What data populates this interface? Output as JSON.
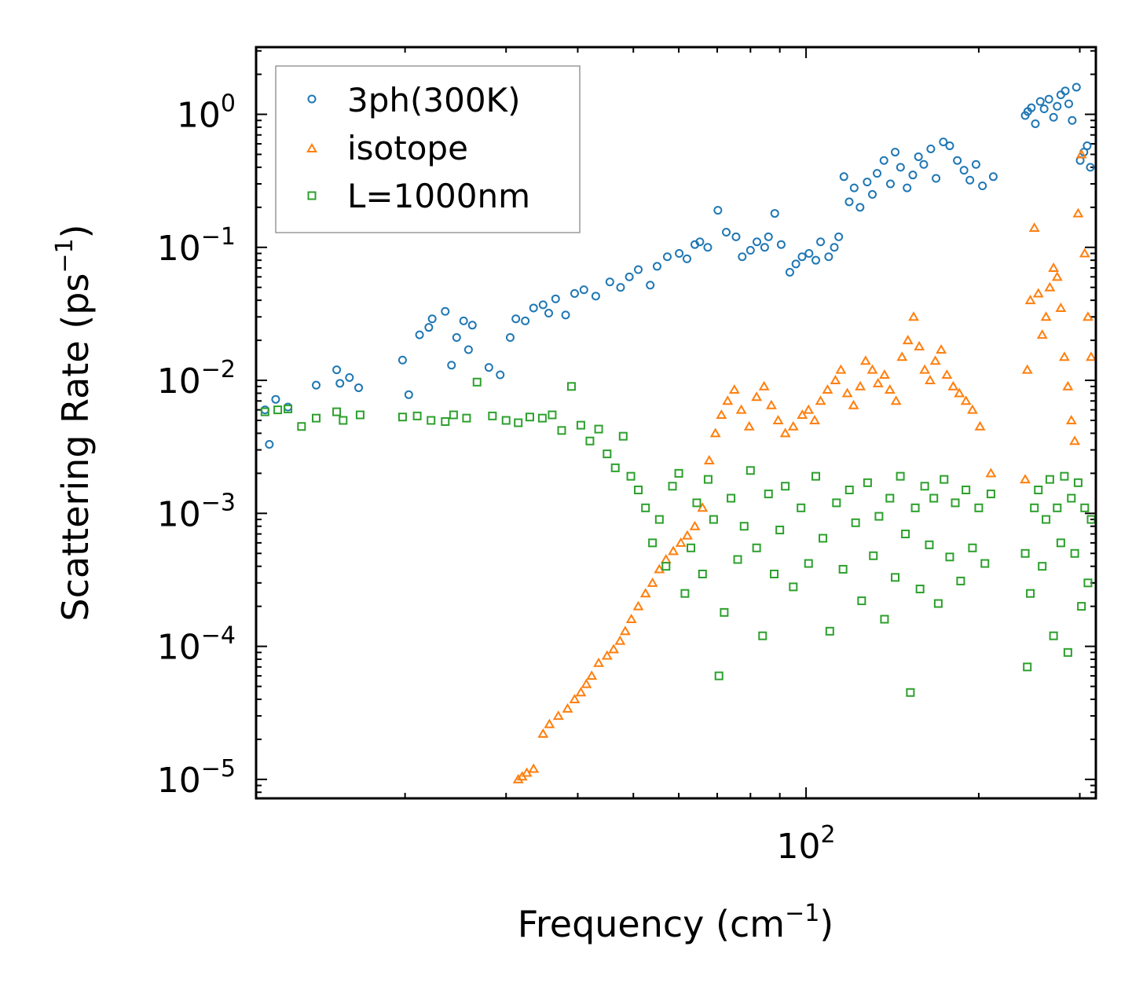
{
  "chart_data": {
    "type": "scatter",
    "xscale": "log",
    "yscale": "log",
    "xlim": [
      11,
      320
    ],
    "ylim": [
      7.2e-06,
      3.2
    ],
    "xlabel": "Frequency (cm",
    "xlabel_sup": "−1",
    "xlabel_end": ")",
    "ylabel": "Scattering Rate (ps",
    "ylabel_sup": "−1",
    "ylabel_end": ")",
    "xticks_major": [
      {
        "value": 100,
        "base": "10",
        "exp": "2"
      }
    ],
    "yticks_major": [
      {
        "value": 1,
        "base": "10",
        "exp": "0"
      },
      {
        "value": 0.1,
        "base": "10",
        "exp": "−1"
      },
      {
        "value": 0.01,
        "base": "10",
        "exp": "−2"
      },
      {
        "value": 0.001,
        "base": "10",
        "exp": "−3"
      },
      {
        "value": 0.0001,
        "base": "10",
        "exp": "−4"
      },
      {
        "value": 1e-05,
        "base": "10",
        "exp": "−5"
      }
    ],
    "legend": {
      "location": "upper-left",
      "entries": [
        "3ph(300K)",
        "isotope",
        "L=1000nm"
      ]
    },
    "series": [
      {
        "name": "3ph(300K)",
        "marker": "circle",
        "color": "#1f77b4",
        "x": [
          11.4,
          11.6,
          11.9,
          12.5,
          14.0,
          15.2,
          15.4,
          16.0,
          16.6,
          19.8,
          20.3,
          21.2,
          22.0,
          22.3,
          23.5,
          24.1,
          24.6,
          25.3,
          25.8,
          26.2,
          28.0,
          29.3,
          30.5,
          31.2,
          32.4,
          33.5,
          34.8,
          35.6,
          36.6,
          38.1,
          39.5,
          41.0,
          43.0,
          45.5,
          47.5,
          49.2,
          51.0,
          53.5,
          55.0,
          57.3,
          60.1,
          62.0,
          64.0,
          65.3,
          67.4,
          70.2,
          72.6,
          75.5,
          77.4,
          80.0,
          82.1,
          84.7,
          86.0,
          88.2,
          90.5,
          93.7,
          96.0,
          98.4,
          101.2,
          104.0,
          106.0,
          109.5,
          112.0,
          114.0,
          116.4,
          118.9,
          121.3,
          124.2,
          127.8,
          130.5,
          133.0,
          136.7,
          140.3,
          143.0,
          146.1,
          150.0,
          153.5,
          157.0,
          160.4,
          165.0,
          168.5,
          173.5,
          178.0,
          183.5,
          188.5,
          193.0,
          197.8,
          203.0,
          212.0,
          241.0,
          243.5,
          247.0,
          251.0,
          256.0,
          260.0,
          265.0,
          270.0,
          274.0,
          278.0,
          283.0,
          287.0,
          291.0,
          296.0,
          300.5,
          305.0,
          309.0,
          313.0
        ],
        "y": [
          0.006,
          0.0033,
          0.0072,
          0.0063,
          0.0092,
          0.012,
          0.0095,
          0.0105,
          0.0088,
          0.0142,
          0.0078,
          0.022,
          0.025,
          0.029,
          0.033,
          0.013,
          0.021,
          0.028,
          0.017,
          0.026,
          0.0125,
          0.011,
          0.021,
          0.029,
          0.028,
          0.035,
          0.037,
          0.032,
          0.041,
          0.031,
          0.045,
          0.048,
          0.043,
          0.055,
          0.05,
          0.06,
          0.068,
          0.052,
          0.072,
          0.085,
          0.09,
          0.082,
          0.105,
          0.11,
          0.1,
          0.19,
          0.13,
          0.12,
          0.085,
          0.095,
          0.11,
          0.1,
          0.12,
          0.18,
          0.105,
          0.065,
          0.075,
          0.085,
          0.09,
          0.08,
          0.11,
          0.085,
          0.1,
          0.12,
          0.34,
          0.22,
          0.28,
          0.2,
          0.31,
          0.25,
          0.36,
          0.45,
          0.3,
          0.52,
          0.4,
          0.28,
          0.35,
          0.48,
          0.42,
          0.55,
          0.33,
          0.62,
          0.58,
          0.45,
          0.38,
          0.32,
          0.42,
          0.29,
          0.34,
          0.98,
          1.05,
          1.12,
          0.85,
          1.25,
          1.1,
          1.3,
          0.95,
          1.15,
          1.4,
          1.5,
          1.2,
          0.9,
          1.6,
          0.45,
          0.52,
          0.58,
          0.4
        ]
      },
      {
        "name": "isotope",
        "marker": "triangle",
        "color": "#ff7f0e",
        "x": [
          31.5,
          32.0,
          32.6,
          33.5,
          34.8,
          35.7,
          37.0,
          38.4,
          39.5,
          40.5,
          41.4,
          42.3,
          43.5,
          45.0,
          46.2,
          47.4,
          48.4,
          49.6,
          51.0,
          52.5,
          54.0,
          55.5,
          57.0,
          58.7,
          60.5,
          62.1,
          64.0,
          66.0,
          67.8,
          69.5,
          71.2,
          73.0,
          75.0,
          77.1,
          79.6,
          82.0,
          84.5,
          87.0,
          89.4,
          92.0,
          95.0,
          98.5,
          101.0,
          103.5,
          106.0,
          109.0,
          112.5,
          115.0,
          118.0,
          121.0,
          124.3,
          127.0,
          130.5,
          133.5,
          137.0,
          140.0,
          143.5,
          147.0,
          150.5,
          154.0,
          157.5,
          161.0,
          164.5,
          168.0,
          172.0,
          176.0,
          180.5,
          185.0,
          190.0,
          195.0,
          201.0,
          210.0,
          241.0,
          243.0,
          246.0,
          250.0,
          254.0,
          258.0,
          262.0,
          266.0,
          270.0,
          274.0,
          278.0,
          282.0,
          286.0,
          290.0,
          294.0,
          298.0,
          302.0,
          306.0,
          310.0,
          314.0
        ],
        "y": [
          1e-05,
          1.05e-05,
          1.12e-05,
          1.2e-05,
          2.2e-05,
          2.6e-05,
          3e-05,
          3.4e-05,
          4e-05,
          4.5e-05,
          5.2e-05,
          6e-05,
          7.5e-05,
          8.5e-05,
          9.5e-05,
          0.00011,
          0.00013,
          0.00016,
          0.0002,
          0.00025,
          0.0003,
          0.00038,
          0.00045,
          0.00052,
          0.0006,
          0.00068,
          0.0008,
          0.0011,
          0.0025,
          0.004,
          0.0055,
          0.007,
          0.0085,
          0.006,
          0.0045,
          0.0075,
          0.009,
          0.0065,
          0.005,
          0.004,
          0.0045,
          0.0055,
          0.006,
          0.005,
          0.007,
          0.0085,
          0.01,
          0.012,
          0.008,
          0.0065,
          0.009,
          0.014,
          0.012,
          0.0095,
          0.011,
          0.0085,
          0.007,
          0.015,
          0.02,
          0.03,
          0.018,
          0.012,
          0.01,
          0.014,
          0.017,
          0.011,
          0.009,
          0.008,
          0.007,
          0.006,
          0.0045,
          0.002,
          0.0018,
          0.012,
          0.04,
          0.14,
          0.045,
          0.022,
          0.03,
          0.05,
          0.07,
          0.06,
          0.035,
          0.015,
          0.009,
          0.005,
          0.0035,
          0.18,
          0.5,
          0.09,
          0.03,
          0.015
        ]
      },
      {
        "name": "L=1000nm",
        "marker": "square",
        "color": "#2ca02c",
        "x": [
          11.4,
          12.0,
          12.5,
          13.2,
          14.0,
          15.2,
          15.6,
          16.7,
          19.8,
          21.0,
          22.2,
          23.5,
          24.3,
          25.6,
          26.7,
          28.4,
          30.0,
          31.5,
          33.0,
          34.7,
          36.1,
          37.5,
          39.0,
          40.5,
          42.0,
          43.5,
          45.0,
          46.5,
          48.0,
          49.5,
          51.0,
          52.5,
          54.0,
          55.5,
          57.0,
          58.5,
          60.0,
          61.5,
          63.0,
          64.5,
          66.0,
          67.5,
          69.0,
          70.5,
          72.0,
          74.0,
          76.0,
          78.0,
          80.0,
          82.0,
          84.0,
          86.0,
          88.0,
          90.0,
          92.0,
          95.0,
          98.0,
          101.0,
          104.0,
          107.0,
          110.0,
          113.0,
          116.0,
          119.0,
          122.0,
          125.0,
          128.0,
          131.0,
          134.0,
          137.0,
          140.0,
          143.0,
          146.0,
          149.0,
          152.0,
          155.0,
          158.0,
          161.0,
          164.0,
          167.0,
          170.0,
          174.0,
          178.0,
          182.0,
          186.0,
          190.0,
          195.0,
          200.0,
          205.0,
          210.0,
          241.0,
          243.0,
          246.0,
          250.0,
          254.0,
          258.0,
          262.0,
          266.0,
          270.0,
          274.0,
          278.0,
          282.0,
          286.0,
          290.0,
          294.0,
          298.0,
          302.0,
          306.0,
          310.0,
          314.0
        ],
        "y": [
          0.0058,
          0.006,
          0.0061,
          0.0045,
          0.0052,
          0.0058,
          0.005,
          0.0055,
          0.0053,
          0.0054,
          0.005,
          0.0049,
          0.0055,
          0.0052,
          0.0097,
          0.0054,
          0.005,
          0.0048,
          0.0053,
          0.0052,
          0.0055,
          0.0042,
          0.009,
          0.0046,
          0.0035,
          0.0043,
          0.0028,
          0.0022,
          0.0038,
          0.0019,
          0.0015,
          0.0011,
          0.0006,
          0.0009,
          0.0004,
          0.0016,
          0.002,
          0.00025,
          0.00055,
          0.0012,
          0.00035,
          0.0018,
          0.0009,
          6e-05,
          0.00018,
          0.0013,
          0.00045,
          0.0008,
          0.0021,
          0.00055,
          0.00012,
          0.0014,
          0.00035,
          0.00075,
          0.0016,
          0.00028,
          0.0011,
          0.00042,
          0.0019,
          0.00065,
          0.00013,
          0.0012,
          0.00038,
          0.0015,
          0.00085,
          0.00022,
          0.0017,
          0.00048,
          0.00095,
          0.00016,
          0.0013,
          0.00033,
          0.0019,
          0.0007,
          4.5e-05,
          0.0011,
          0.00027,
          0.0016,
          0.00058,
          0.0013,
          0.00021,
          0.0018,
          0.00047,
          0.0012,
          0.00031,
          0.0015,
          0.00055,
          0.0011,
          0.00042,
          0.0014,
          0.0005,
          7e-05,
          0.00025,
          0.0011,
          0.0015,
          0.0004,
          0.0009,
          0.0018,
          0.00012,
          0.0011,
          0.0006,
          0.0019,
          9e-05,
          0.0013,
          0.0005,
          0.0017,
          0.0002,
          0.0011,
          0.0003,
          0.0009
        ]
      }
    ]
  }
}
